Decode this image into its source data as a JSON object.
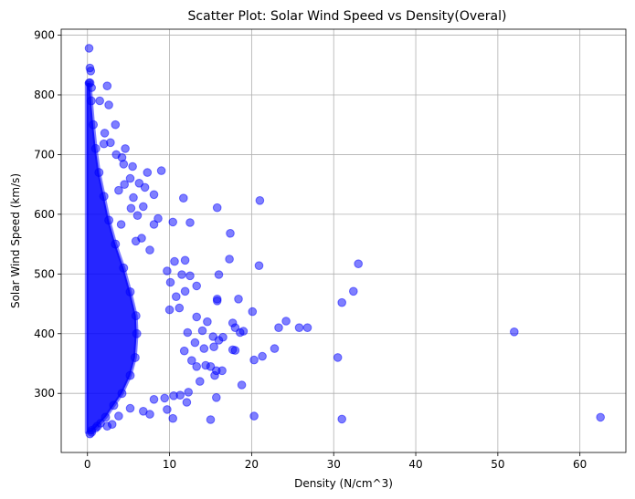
{
  "chart_data": {
    "type": "scatter",
    "title": "Scatter Plot: Solar Wind Speed vs Density(Overal)",
    "xlabel": "Density (N/cm^3)",
    "ylabel": "Solar Wind Speed (km/s)",
    "xlim": [
      -3.2,
      65.6
    ],
    "ylim": [
      201,
      910
    ],
    "xticks": [
      0,
      10,
      20,
      30,
      40,
      50,
      60
    ],
    "yticks": [
      300,
      400,
      500,
      600,
      700,
      800,
      900
    ],
    "grid": true,
    "marker_color": "#0000ff",
    "marker_alpha": 0.5,
    "series": [
      {
        "points": [
          [
            0.2,
            878
          ],
          [
            0.3,
            845
          ],
          [
            0.4,
            840
          ],
          [
            0.2,
            820
          ],
          [
            0.5,
            812
          ],
          [
            2.4,
            815
          ],
          [
            2.6,
            783
          ],
          [
            1.5,
            790
          ],
          [
            3.4,
            750
          ],
          [
            2.1,
            736
          ],
          [
            4.6,
            710
          ],
          [
            4.2,
            695
          ],
          [
            2.0,
            718
          ],
          [
            2.8,
            720
          ],
          [
            3.5,
            700
          ],
          [
            5.5,
            680
          ],
          [
            7.3,
            670
          ],
          [
            9.0,
            673
          ],
          [
            4.4,
            684
          ],
          [
            6.3,
            652
          ],
          [
            7.0,
            645
          ],
          [
            5.2,
            660
          ],
          [
            4.5,
            650
          ],
          [
            3.8,
            640
          ],
          [
            5.6,
            628
          ],
          [
            6.8,
            613
          ],
          [
            8.1,
            633
          ],
          [
            11.7,
            627
          ],
          [
            21.0,
            623
          ],
          [
            15.8,
            611
          ],
          [
            10.4,
            587
          ],
          [
            12.5,
            586
          ],
          [
            8.6,
            593
          ],
          [
            8.1,
            583
          ],
          [
            6.1,
            598
          ],
          [
            5.3,
            610
          ],
          [
            17.4,
            568
          ],
          [
            4.1,
            583
          ],
          [
            7.6,
            540
          ],
          [
            6.6,
            560
          ],
          [
            5.9,
            555
          ],
          [
            11.9,
            523
          ],
          [
            10.6,
            521
          ],
          [
            17.3,
            525
          ],
          [
            20.9,
            514
          ],
          [
            33.0,
            517
          ],
          [
            16.0,
            499
          ],
          [
            11.5,
            499
          ],
          [
            12.5,
            497
          ],
          [
            9.7,
            505
          ],
          [
            10.1,
            486
          ],
          [
            13.3,
            480
          ],
          [
            11.9,
            471
          ],
          [
            10.8,
            462
          ],
          [
            15.8,
            458
          ],
          [
            15.8,
            455
          ],
          [
            18.4,
            458
          ],
          [
            31.0,
            452
          ],
          [
            32.4,
            471
          ],
          [
            20.1,
            437
          ],
          [
            13.3,
            428
          ],
          [
            11.2,
            443
          ],
          [
            10.0,
            440
          ],
          [
            14.0,
            405
          ],
          [
            14.6,
            420
          ],
          [
            15.3,
            395
          ],
          [
            16.0,
            389
          ],
          [
            17.7,
            418
          ],
          [
            18.0,
            410
          ],
          [
            18.6,
            402
          ],
          [
            19.0,
            404
          ],
          [
            23.3,
            410
          ],
          [
            24.2,
            421
          ],
          [
            25.8,
            410
          ],
          [
            26.8,
            410
          ],
          [
            52.0,
            403
          ],
          [
            12.2,
            402
          ],
          [
            13.1,
            385
          ],
          [
            11.8,
            371
          ],
          [
            12.7,
            355
          ],
          [
            13.3,
            345
          ],
          [
            14.4,
            347
          ],
          [
            14.2,
            375
          ],
          [
            15.4,
            378
          ],
          [
            16.5,
            394
          ],
          [
            17.7,
            373
          ],
          [
            18.0,
            372
          ],
          [
            21.3,
            362
          ],
          [
            22.8,
            375
          ],
          [
            30.5,
            360
          ],
          [
            20.3,
            356
          ],
          [
            15.0,
            345
          ],
          [
            15.7,
            338
          ],
          [
            16.4,
            338
          ],
          [
            15.5,
            330
          ],
          [
            13.7,
            320
          ],
          [
            12.3,
            302
          ],
          [
            11.3,
            297
          ],
          [
            12.1,
            285
          ],
          [
            15.7,
            293
          ],
          [
            18.8,
            314
          ],
          [
            10.5,
            296
          ],
          [
            9.4,
            292
          ],
          [
            9.7,
            273
          ],
          [
            8.1,
            290
          ],
          [
            6.8,
            270
          ],
          [
            7.6,
            265
          ],
          [
            5.2,
            275
          ],
          [
            3.8,
            262
          ],
          [
            3.0,
            248
          ],
          [
            10.4,
            258
          ],
          [
            15.0,
            256
          ],
          [
            20.3,
            262
          ],
          [
            31.0,
            257
          ],
          [
            62.5,
            260
          ],
          [
            2.4,
            245
          ],
          [
            1.6,
            250
          ],
          [
            0.5,
            238
          ],
          [
            0.3,
            232
          ],
          [
            1.0,
            242
          ]
        ]
      }
    ]
  }
}
